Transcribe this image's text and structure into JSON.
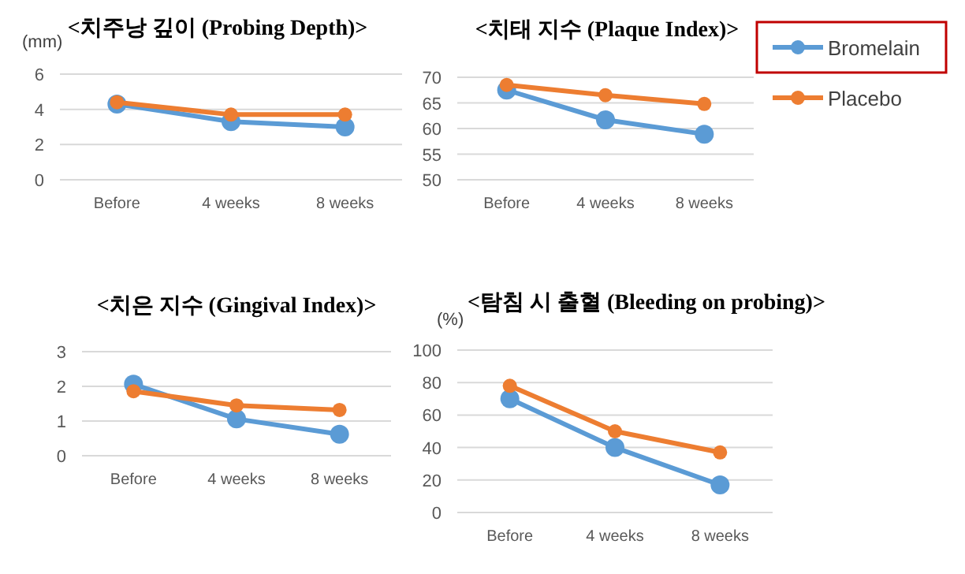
{
  "chart_data": [
    {
      "type": "line",
      "title": "<치주낭 깊이 (Probing Depth)>",
      "ylabel": "(mm)",
      "categories": [
        "Before",
        "4 weeks",
        "8 weeks"
      ],
      "ylim": [
        0,
        6
      ],
      "yticks": [
        0,
        2,
        4,
        6
      ],
      "grid": "y",
      "marker": "circle",
      "series": [
        {
          "color": "#5b9bd5",
          "values": [
            4.3,
            3.3,
            3.0
          ]
        },
        {
          "color": "#ed7d31",
          "values": [
            4.4,
            3.7,
            3.7
          ]
        }
      ]
    },
    {
      "type": "line",
      "title": "<치태 지수 (Plaque Index)>",
      "categories": [
        "Before",
        "4 weeks",
        "8 weeks"
      ],
      "ylim": [
        50,
        70
      ],
      "yticks": [
        50,
        55,
        60,
        65,
        70
      ],
      "grid": "y",
      "marker": "circle",
      "legend": "right",
      "series": [
        {
          "name": "Bromelain",
          "color": "#5b9bd5",
          "values": [
            67.5,
            61.7,
            58.9
          ]
        },
        {
          "name": "Placebo",
          "color": "#ed7d31",
          "values": [
            68.5,
            66.5,
            64.8
          ]
        }
      ]
    },
    {
      "type": "line",
      "title": "<치은 지수 (Gingival Index)>",
      "categories": [
        "Before",
        "4 weeks",
        "8 weeks"
      ],
      "ylim": [
        0,
        3
      ],
      "yticks": [
        0,
        1,
        2,
        3
      ],
      "grid": "y",
      "marker": "circle",
      "series": [
        {
          "color": "#5b9bd5",
          "values": [
            2.06,
            1.06,
            0.62
          ]
        },
        {
          "color": "#ed7d31",
          "values": [
            1.86,
            1.45,
            1.32
          ]
        }
      ]
    },
    {
      "type": "line",
      "title": "<탐침 시 출혈 (Bleeding on probing)>",
      "ylabel": "(%)",
      "categories": [
        "Before",
        "4 weeks",
        "8 weeks"
      ],
      "ylim": [
        0,
        100
      ],
      "yticks": [
        0,
        20,
        40,
        60,
        80,
        100
      ],
      "grid": "y",
      "marker": "circle",
      "series": [
        {
          "color": "#5b9bd5",
          "values": [
            70,
            40,
            17
          ]
        },
        {
          "color": "#ed7d31",
          "values": [
            78,
            50,
            37
          ]
        }
      ]
    }
  ]
}
